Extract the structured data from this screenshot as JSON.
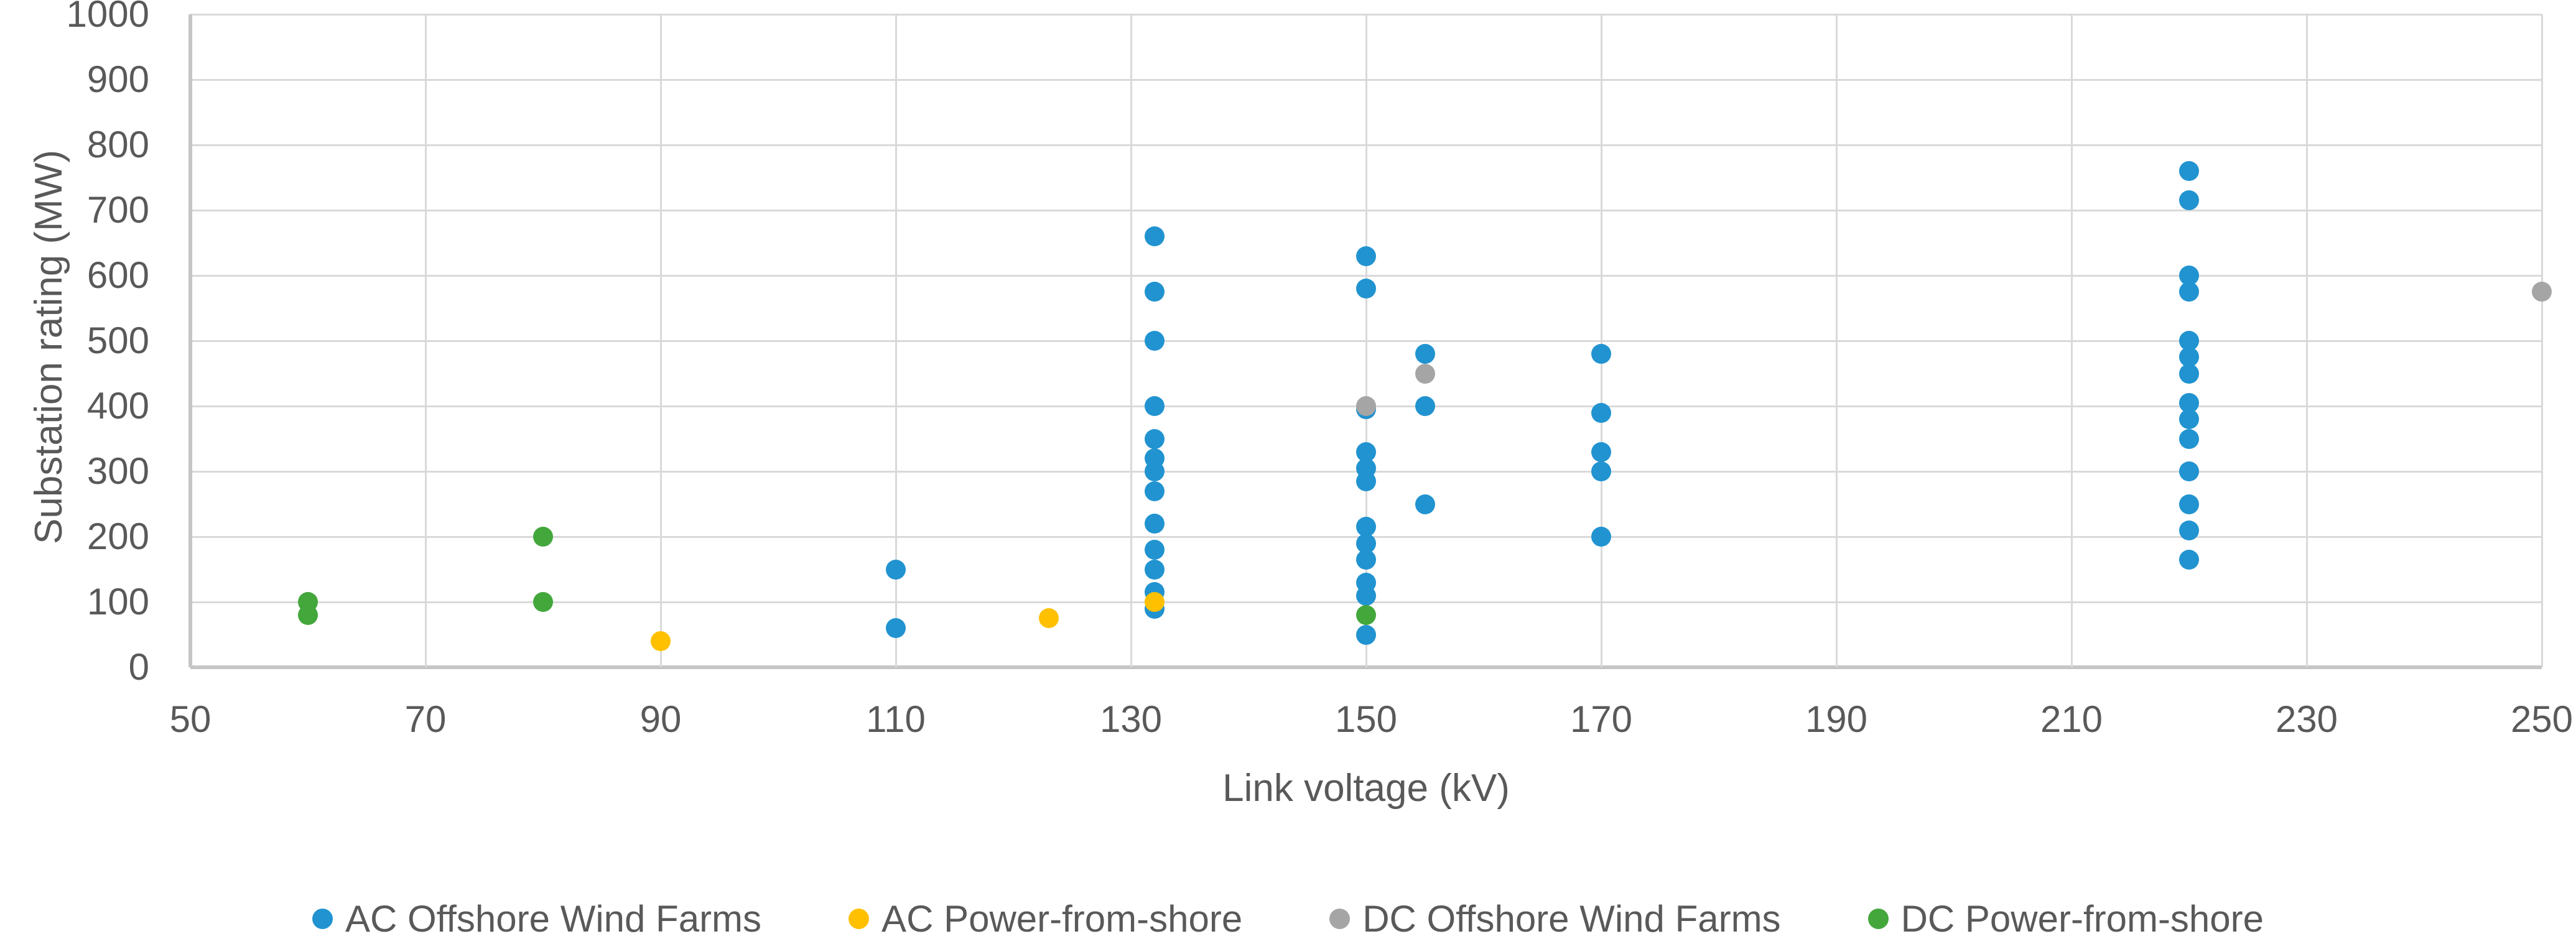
{
  "chart_data": {
    "type": "scatter",
    "title": "",
    "xlabel": "Link voltage (kV)",
    "ylabel": "Substation rating (MW)",
    "xlim": [
      50,
      250
    ],
    "ylim": [
      0,
      1000
    ],
    "x_ticks": [
      50,
      70,
      90,
      110,
      130,
      150,
      170,
      190,
      210,
      230,
      250
    ],
    "y_ticks": [
      0,
      100,
      200,
      300,
      400,
      500,
      600,
      700,
      800,
      900,
      1000
    ],
    "grid": true,
    "legend_position": "bottom",
    "series": [
      {
        "name": "AC Offshore Wind Farms",
        "color": "#2193d0",
        "points": [
          [
            110,
            150
          ],
          [
            110,
            60
          ],
          [
            132,
            660
          ],
          [
            132,
            575
          ],
          [
            132,
            500
          ],
          [
            132,
            400
          ],
          [
            132,
            350
          ],
          [
            132,
            320
          ],
          [
            132,
            300
          ],
          [
            132,
            270
          ],
          [
            132,
            220
          ],
          [
            132,
            180
          ],
          [
            132,
            150
          ],
          [
            132,
            115
          ],
          [
            132,
            90
          ],
          [
            150,
            630
          ],
          [
            150,
            580
          ],
          [
            150,
            395
          ],
          [
            150,
            330
          ],
          [
            150,
            305
          ],
          [
            150,
            285
          ],
          [
            150,
            215
          ],
          [
            150,
            190
          ],
          [
            150,
            165
          ],
          [
            150,
            130
          ],
          [
            150,
            110
          ],
          [
            150,
            50
          ],
          [
            155,
            480
          ],
          [
            155,
            400
          ],
          [
            155,
            250
          ],
          [
            170,
            480
          ],
          [
            170,
            390
          ],
          [
            170,
            330
          ],
          [
            170,
            300
          ],
          [
            170,
            200
          ],
          [
            220,
            760
          ],
          [
            220,
            715
          ],
          [
            220,
            600
          ],
          [
            220,
            575
          ],
          [
            220,
            500
          ],
          [
            220,
            475
          ],
          [
            220,
            450
          ],
          [
            220,
            405
          ],
          [
            220,
            380
          ],
          [
            220,
            350
          ],
          [
            220,
            300
          ],
          [
            220,
            250
          ],
          [
            220,
            210
          ],
          [
            220,
            165
          ]
        ]
      },
      {
        "name": "AC Power-from-shore",
        "color": "#ffc000",
        "points": [
          [
            90,
            40
          ],
          [
            123,
            75
          ],
          [
            132,
            100
          ]
        ]
      },
      {
        "name": "DC Offshore Wind Farms",
        "color": "#a5a5a5",
        "points": [
          [
            150,
            400
          ],
          [
            155,
            450
          ],
          [
            250,
            575
          ]
        ]
      },
      {
        "name": "DC Power-from-shore",
        "color": "#43a73c",
        "points": [
          [
            60,
            100
          ],
          [
            60,
            80
          ],
          [
            80,
            200
          ],
          [
            80,
            100
          ],
          [
            150,
            80
          ]
        ]
      }
    ]
  },
  "colors": {
    "tick_text": "#595959",
    "gridline": "#d9d9d9",
    "axis_line": "#c6c6c6",
    "background": "#ffffff"
  }
}
